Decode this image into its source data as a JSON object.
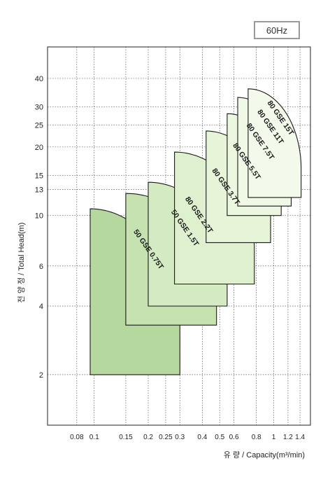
{
  "frequency_badge": "60Hz",
  "chart_data": {
    "type": "area",
    "title": "",
    "xlabel": "유 량 / Capacity(m³/min)",
    "ylabel": "전 양 정 / Total Head(m)",
    "x_scale": "log",
    "y_scale": "log",
    "xlim": [
      0.055,
      1.6
    ],
    "ylim": [
      1.2,
      55
    ],
    "x_ticks": [
      {
        "value": 0.08,
        "label": "0.08"
      },
      {
        "value": 0.1,
        "label": "0.1"
      },
      {
        "value": 0.15,
        "label": "0.15"
      },
      {
        "value": 0.2,
        "label": "0.2"
      },
      {
        "value": 0.25,
        "label": "0.25"
      },
      {
        "value": 0.3,
        "label": "0.3"
      },
      {
        "value": 0.4,
        "label": "0.4"
      },
      {
        "value": 0.5,
        "label": "0.5"
      },
      {
        "value": 0.6,
        "label": "0.6"
      },
      {
        "value": 0.8,
        "label": "0.8"
      },
      {
        "value": 1,
        "label": "1"
      },
      {
        "value": 1.2,
        "label": "1.2"
      },
      {
        "value": 1.4,
        "label": "1.4"
      }
    ],
    "y_ticks": [
      {
        "value": 2,
        "label": "2"
      },
      {
        "value": 4,
        "label": "4"
      },
      {
        "value": 6,
        "label": "6"
      },
      {
        "value": 10,
        "label": "10"
      },
      {
        "value": 13,
        "label": "13"
      },
      {
        "value": 15,
        "label": "15"
      },
      {
        "value": 20,
        "label": "20"
      },
      {
        "value": 25,
        "label": "25"
      },
      {
        "value": 30,
        "label": "30"
      },
      {
        "value": 40,
        "label": "40"
      }
    ],
    "grid": true,
    "series": [
      {
        "name": "50 GSE 0.75T",
        "q_min": 0.095,
        "q_max": 0.3,
        "h_top": 10.7,
        "h_bottom": 2.0,
        "h_end": 3.2,
        "color": "#b5d89e"
      },
      {
        "name": "50 GSE 1.5T",
        "q_min": 0.15,
        "q_max": 0.48,
        "h_top": 12.5,
        "h_bottom": 3.3,
        "h_end": 4.6,
        "color": "#c6e2b0"
      },
      {
        "name": "80 GSE 2.2T",
        "q_min": 0.2,
        "q_max": 0.55,
        "h_top": 14.0,
        "h_bottom": 4.0,
        "h_end": 5.5,
        "color": "#d4eac2"
      },
      {
        "name": "80 GSE 3.7T",
        "q_min": 0.28,
        "q_max": 0.78,
        "h_top": 19.0,
        "h_bottom": 5.0,
        "h_end": 7.0,
        "color": "#dff0cf"
      },
      {
        "name": "80 GSE 5.5T",
        "q_min": 0.42,
        "q_max": 0.96,
        "h_top": 23.5,
        "h_bottom": 7.6,
        "h_end": 10.0,
        "color": "#e6f4d8"
      },
      {
        "name": "80 GSE 7.5T",
        "q_min": 0.55,
        "q_max": 1.1,
        "h_top": 28.0,
        "h_bottom": 10.0,
        "h_end": 13.0,
        "color": "#ecf7e0"
      },
      {
        "name": "80 GSE 11T",
        "q_min": 0.63,
        "q_max": 1.25,
        "h_top": 33.0,
        "h_bottom": 11.0,
        "h_end": 14.5,
        "color": "#f0f9e6"
      },
      {
        "name": "80 GSE 15T",
        "q_min": 0.72,
        "q_max": 1.42,
        "h_top": 36.0,
        "h_bottom": 12.0,
        "h_end": 16.0,
        "color": "#f3faeb"
      }
    ]
  }
}
